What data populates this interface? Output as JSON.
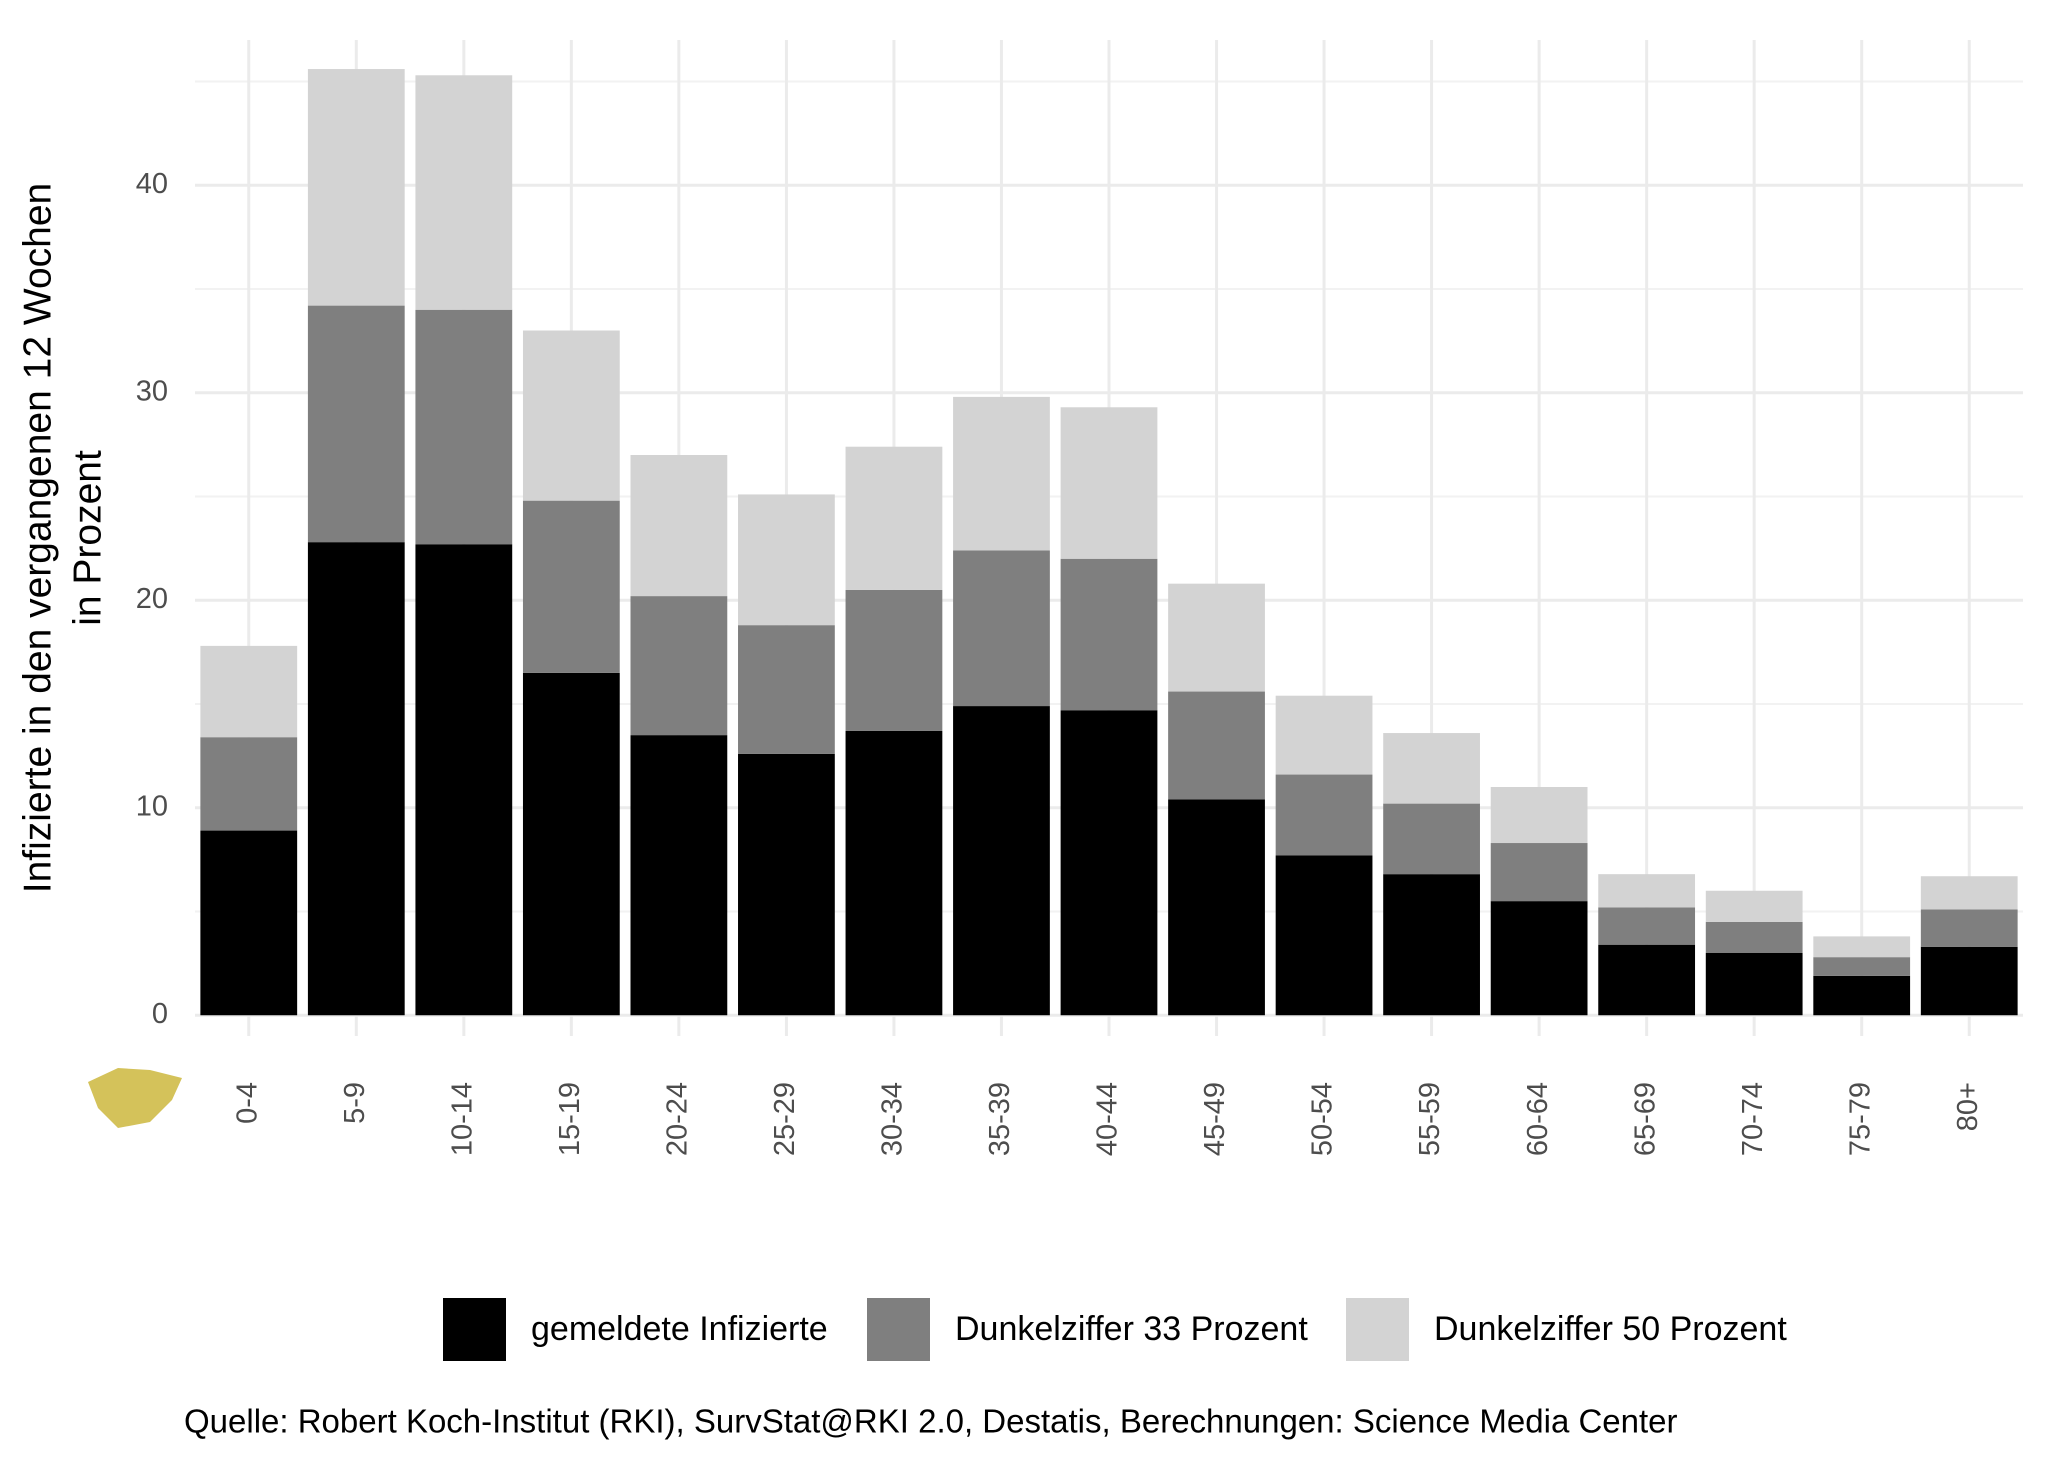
{
  "chart_data": {
    "type": "stacked_bar",
    "y_label": [
      "Infizierte in den vergangenen 12 Wochen",
      "in Prozent"
    ],
    "caption": "Quelle: Robert Koch-Institut (RKI), SurvStat@RKI 2.0, Destatis, Berechnungen: Science Media Center",
    "categories": [
      "0-4",
      "5-9",
      "10-14",
      "15-19",
      "20-24",
      "25-29",
      "30-34",
      "35-39",
      "40-44",
      "45-49",
      "50-54",
      "55-59",
      "60-64",
      "65-69",
      "70-74",
      "75-79",
      "80+"
    ],
    "series": [
      {
        "name": "gemeldete Infizierte",
        "color": "#000000",
        "values": [
          8.9,
          22.8,
          22.7,
          16.5,
          13.5,
          12.6,
          13.7,
          14.9,
          14.7,
          10.4,
          7.7,
          6.8,
          5.5,
          3.4,
          3.0,
          1.9,
          3.3
        ]
      },
      {
        "name": "Dunkelziffer 33 Prozent",
        "color": "#7f7f7f",
        "values": [
          4.5,
          11.4,
          11.3,
          8.3,
          6.7,
          6.2,
          6.8,
          7.5,
          7.3,
          5.2,
          3.9,
          3.4,
          2.8,
          1.8,
          1.5,
          0.9,
          1.8
        ]
      },
      {
        "name": "Dunkelziffer 50 Prozent",
        "color": "#d3d3d3",
        "values": [
          4.4,
          11.4,
          11.3,
          8.2,
          6.8,
          6.3,
          6.9,
          7.4,
          7.3,
          5.2,
          3.8,
          3.4,
          2.7,
          1.6,
          1.5,
          1.0,
          1.6
        ]
      }
    ],
    "ylim": [
      -1,
      47
    ],
    "yticks": [
      0,
      10,
      20,
      30,
      40
    ],
    "minor_yticks": [
      5,
      15,
      25,
      35,
      45
    ],
    "grid": true,
    "legend": "bottom"
  }
}
